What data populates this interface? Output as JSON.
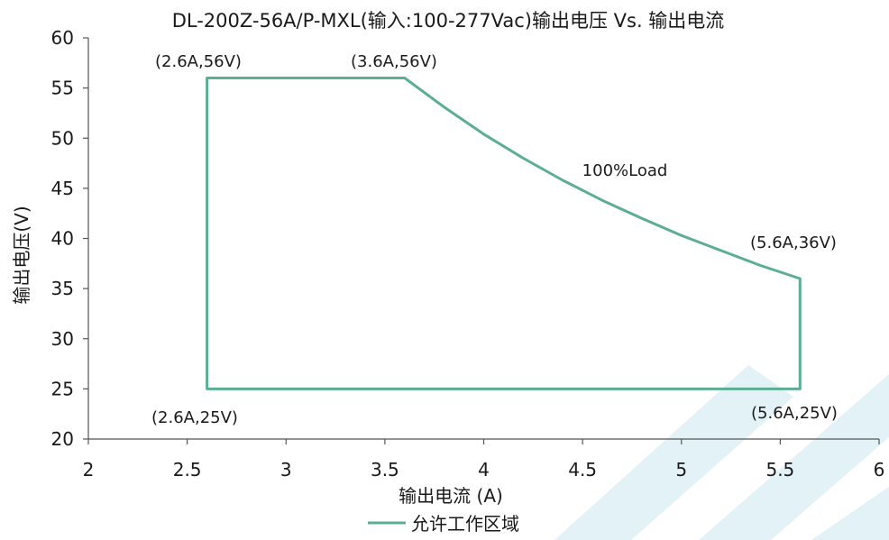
{
  "chart_data": {
    "type": "line",
    "title": "DL-200Z-56A/P-MXL(输入:100-277Vac)输出电压 Vs. 输出电流",
    "xlabel": "输出电流 (A)",
    "ylabel": "输出电压(V)",
    "xlim": [
      2,
      6
    ],
    "ylim": [
      20,
      60
    ],
    "x_ticks": [
      2,
      2.5,
      3,
      3.5,
      4,
      4.5,
      5,
      5.5,
      6
    ],
    "x_tick_labels": [
      "2",
      "2.5",
      "3",
      "3.5",
      "4",
      "4.5",
      "5",
      "5.5",
      "6"
    ],
    "y_ticks": [
      20,
      25,
      30,
      35,
      40,
      45,
      50,
      55,
      60
    ],
    "y_tick_labels": [
      "20",
      "25",
      "30",
      "35",
      "40",
      "45",
      "50",
      "55",
      "60"
    ],
    "grid": false,
    "legend": {
      "position": "bottom"
    },
    "series": [
      {
        "name": "允许工作区域",
        "color": "#5cae93",
        "x": [
          2.6,
          2.6,
          3.6,
          3.8,
          4.0,
          4.2,
          4.4,
          4.6,
          4.8,
          5.0,
          5.2,
          5.4,
          5.6,
          5.6,
          2.6
        ],
        "y": [
          25,
          56,
          56,
          53.1,
          50.4,
          48.0,
          45.8,
          43.8,
          42.0,
          40.3,
          38.8,
          37.3,
          36,
          25,
          25
        ]
      }
    ],
    "annotations": [
      {
        "text": "(2.6A,56V)"
      },
      {
        "text": "(3.6A,56V)"
      },
      {
        "text": "100%Load"
      },
      {
        "text": "(5.6A,36V)"
      },
      {
        "text": "(2.6A,25V)"
      },
      {
        "text": "(5.6A,25V)"
      }
    ]
  }
}
